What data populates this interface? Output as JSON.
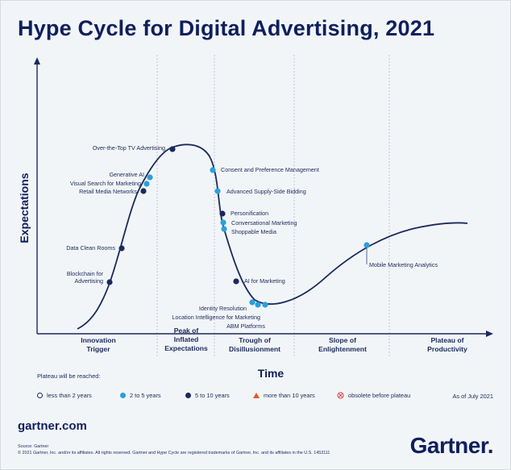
{
  "title": "Hype Cycle for Digital Advertising, 2021",
  "colors": {
    "navy": "#1a2a5e",
    "light_blue": "#2aa0dc",
    "dark_navy": "#1b2a5a",
    "orange": "#e8582c",
    "red": "#d94040"
  },
  "chart_data": {
    "type": "hype-cycle",
    "title": "Hype Cycle for Digital Advertising, 2021",
    "xlabel": "Time",
    "ylabel": "Expectations",
    "phases": [
      "Innovation Trigger",
      "Peak of Inflated Expectations",
      "Trough of Disillusionment",
      "Slope of Enlightenment",
      "Plateau of Productivity"
    ],
    "points": [
      {
        "label": "Over-the-Top TV Advertising",
        "plateau": "5 to 10 years"
      },
      {
        "label": "Generative AI",
        "plateau": "2 to 5 years"
      },
      {
        "label": "Visual Search for Marketing",
        "plateau": "2 to 5 years"
      },
      {
        "label": "Retail Media Networks",
        "plateau": "5 to 10 years"
      },
      {
        "label": "Data Clean Rooms",
        "plateau": "5 to 10 years"
      },
      {
        "label": "Blockchain for Advertising",
        "plateau": "5 to 10 years"
      },
      {
        "label": "Consent and Preference Management",
        "plateau": "2 to 5 years"
      },
      {
        "label": "Advanced Supply-Side Bidding",
        "plateau": "2 to 5 years"
      },
      {
        "label": "Personification",
        "plateau": "5 to 10 years"
      },
      {
        "label": "Conversational Marketing",
        "plateau": "2 to 5 years"
      },
      {
        "label": "Shoppable Media",
        "plateau": "2 to 5 years"
      },
      {
        "label": "AI for Marketing",
        "plateau": "5 to 10 years"
      },
      {
        "label": "Identity Resolution",
        "plateau": "2 to 5 years"
      },
      {
        "label": "Location Intelligence for Marketing",
        "plateau": "2 to 5 years"
      },
      {
        "label": "ABM Platforms",
        "plateau": "2 to 5 years"
      },
      {
        "label": "Mobile Marketing Analytics",
        "plateau": "2 to 5 years"
      }
    ],
    "legend_title": "Plateau will be reached:",
    "legend": [
      {
        "label": "less than 2 years",
        "symbol": "hollow-circle"
      },
      {
        "label": "2 to 5 years",
        "symbol": "light-blue-dot"
      },
      {
        "label": "5 to 10 years",
        "symbol": "navy-dot"
      },
      {
        "label": "more than 10 years",
        "symbol": "orange-triangle"
      },
      {
        "label": "obsolete before plateau",
        "symbol": "red-crossed-circle"
      }
    ],
    "as_of": "As of July 2021"
  },
  "footer": {
    "site": "gartner.com",
    "source_line1": "Source: Gartner",
    "source_line2": "© 2021 Gartner, Inc. and/or its affiliates. All rights reserved. Gartner and Hype Cycle are registered trademarks of Gartner, Inc. and its affiliates in the U.S. 1453111",
    "brand": "Gartner"
  }
}
